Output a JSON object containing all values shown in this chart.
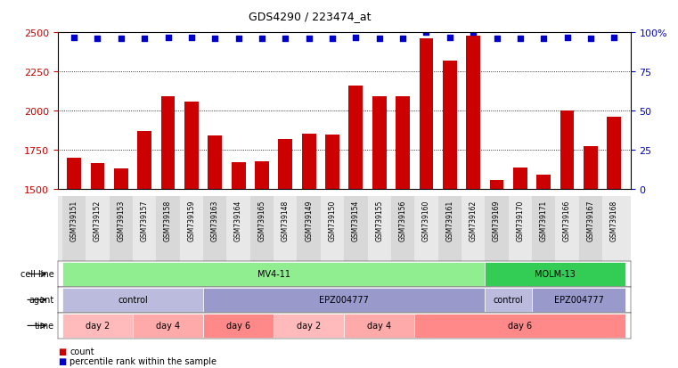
{
  "title": "GDS4290 / 223474_at",
  "samples": [
    "GSM739151",
    "GSM739152",
    "GSM739153",
    "GSM739157",
    "GSM739158",
    "GSM739159",
    "GSM739163",
    "GSM739164",
    "GSM739165",
    "GSM739148",
    "GSM739149",
    "GSM739150",
    "GSM739154",
    "GSM739155",
    "GSM739156",
    "GSM739160",
    "GSM739161",
    "GSM739162",
    "GSM739169",
    "GSM739170",
    "GSM739171",
    "GSM739166",
    "GSM739167",
    "GSM739168"
  ],
  "counts": [
    1700,
    1665,
    1630,
    1870,
    2090,
    2060,
    1840,
    1670,
    1680,
    1820,
    1855,
    1850,
    2160,
    2095,
    2095,
    2460,
    2320,
    2480,
    1560,
    1640,
    1590,
    2000,
    1775,
    1960
  ],
  "percentile_ranks": [
    97,
    96,
    96,
    96,
    97,
    97,
    96,
    96,
    96,
    96,
    96,
    96,
    97,
    96,
    96,
    100,
    97,
    100,
    96,
    96,
    96,
    97,
    96,
    97
  ],
  "ylim_left": [
    1500,
    2500
  ],
  "ylim_right": [
    0,
    100
  ],
  "yticks_left": [
    1500,
    1750,
    2000,
    2250,
    2500
  ],
  "yticks_right": [
    0,
    25,
    50,
    75,
    100
  ],
  "bar_color": "#cc0000",
  "dot_color": "#0000cc",
  "cell_line_spans": [
    {
      "label": "MV4-11",
      "start": 0,
      "end": 17,
      "color": "#90ee90"
    },
    {
      "label": "MOLM-13",
      "start": 18,
      "end": 23,
      "color": "#33cc55"
    }
  ],
  "agent_spans": [
    {
      "label": "control",
      "start": 0,
      "end": 5,
      "color": "#bbbbdd"
    },
    {
      "label": "EPZ004777",
      "start": 6,
      "end": 17,
      "color": "#9999cc"
    },
    {
      "label": "control",
      "start": 18,
      "end": 19,
      "color": "#bbbbdd"
    },
    {
      "label": "EPZ004777",
      "start": 20,
      "end": 23,
      "color": "#9999cc"
    }
  ],
  "time_spans": [
    {
      "label": "day 2",
      "start": 0,
      "end": 2,
      "color": "#ffbbbb"
    },
    {
      "label": "day 4",
      "start": 3,
      "end": 5,
      "color": "#ffaaaa"
    },
    {
      "label": "day 6",
      "start": 6,
      "end": 8,
      "color": "#ff8888"
    },
    {
      "label": "day 2",
      "start": 9,
      "end": 11,
      "color": "#ffbbbb"
    },
    {
      "label": "day 4",
      "start": 12,
      "end": 14,
      "color": "#ffaaaa"
    },
    {
      "label": "day 6",
      "start": 15,
      "end": 23,
      "color": "#ff8888"
    }
  ],
  "background_color": "#ffffff",
  "axis_label_color_left": "#cc0000",
  "axis_label_color_right": "#0000cc",
  "tick_label_bg": "#e8e8e8",
  "row_label_color": "#000000",
  "fig_width": 7.61,
  "fig_height": 4.14,
  "dpi": 100
}
